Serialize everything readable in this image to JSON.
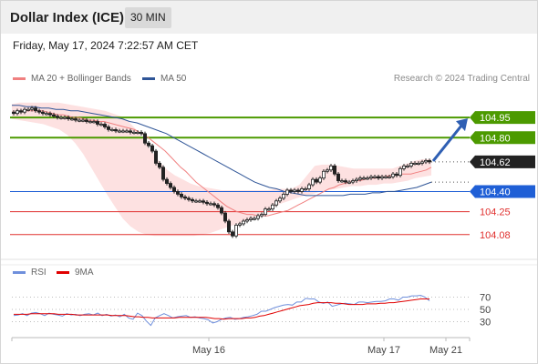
{
  "header": {
    "title": "Dollar Index (ICE)",
    "timeframe": "30 MIN"
  },
  "timestamp": "Friday, May 17, 2024 7:22:57 AM CET",
  "legend": {
    "ma20": {
      "label": "MA 20 + Bollinger Bands",
      "color": "#f08080"
    },
    "ma50": {
      "label": "MA 50",
      "color": "#2f5597"
    },
    "rsi": {
      "label": "RSI",
      "color": "#6f8fdc"
    },
    "ma9": {
      "label": "9MA",
      "color": "#e00000"
    }
  },
  "credit": "Research © 2024 Trading Central",
  "chart_data": [
    {
      "type": "candlestick",
      "ylim": [
        103.95,
        105.14
      ],
      "x_labels": [
        "May 16",
        "May 17",
        "May 21"
      ],
      "levels": [
        {
          "value": 104.95,
          "label": "104.95",
          "kind": "resistance",
          "color": "#4c9a00"
        },
        {
          "value": 104.8,
          "label": "104.80",
          "kind": "resistance",
          "color": "#4c9a00"
        },
        {
          "value": 104.62,
          "label": "104.62",
          "kind": "last-price",
          "color": "#222222"
        },
        {
          "value": 104.4,
          "label": "104.40",
          "kind": "pivot",
          "color": "#1f5fd6"
        },
        {
          "value": 104.25,
          "label": "104.25",
          "kind": "support",
          "color": "#e0312f"
        },
        {
          "value": 104.08,
          "label": "104.08",
          "kind": "support",
          "color": "#e0312f"
        }
      ],
      "forecast_arrow": {
        "from": 104.62,
        "to": 104.95,
        "color": "#2f5fb3"
      },
      "candles": [
        104.98,
        105.0,
        104.99,
        105.01,
        105.01,
        105.02,
        105.0,
        104.99,
        104.98,
        104.98,
        104.97,
        104.96,
        104.95,
        104.95,
        104.95,
        104.94,
        104.94,
        104.93,
        104.93,
        104.93,
        104.92,
        104.92,
        104.92,
        104.9,
        104.9,
        104.88,
        104.86,
        104.86,
        104.85,
        104.85,
        104.85,
        104.85,
        104.84,
        104.84,
        104.84,
        104.83,
        104.76,
        104.74,
        104.7,
        104.61,
        104.58,
        104.49,
        104.46,
        104.43,
        104.4,
        104.38,
        104.36,
        104.35,
        104.34,
        104.33,
        104.33,
        104.33,
        104.32,
        104.31,
        104.31,
        104.3,
        104.28,
        104.24,
        104.18,
        104.1,
        104.07,
        104.15,
        104.16,
        104.18,
        104.19,
        104.2,
        104.2,
        104.22,
        104.23,
        104.27,
        104.27,
        104.3,
        104.33,
        104.35,
        104.38,
        104.41,
        104.4,
        104.41,
        104.4,
        104.42,
        104.42,
        104.45,
        104.49,
        104.47,
        104.5,
        104.55,
        104.56,
        104.59,
        104.53,
        104.48,
        104.48,
        104.47,
        104.47,
        104.48,
        104.49,
        104.5,
        104.5,
        104.5,
        104.51,
        104.51,
        104.5,
        104.51,
        104.51,
        104.51,
        104.53,
        104.52,
        104.57,
        104.59,
        104.59,
        104.61,
        104.61,
        104.61,
        104.62,
        104.63,
        104.62
      ],
      "ma20": [
        104.99,
        104.99,
        105.0,
        105.0,
        105.0,
        105.0,
        105.0,
        104.99,
        104.98,
        104.97,
        104.97,
        104.96,
        104.95,
        104.95,
        104.94,
        104.93,
        104.93,
        104.92,
        104.92,
        104.91,
        104.9,
        104.89,
        104.88,
        104.87,
        104.86,
        104.84,
        104.82,
        104.79,
        104.76,
        104.73,
        104.7,
        104.66,
        104.62,
        104.58,
        104.55,
        104.51,
        104.47,
        104.44,
        104.41,
        104.38,
        104.35,
        104.32,
        104.29,
        104.27,
        104.25,
        104.24,
        104.23,
        104.23,
        104.22,
        104.22,
        104.22,
        104.23,
        104.24,
        104.25,
        104.26,
        104.28,
        104.3,
        104.32,
        104.34,
        104.36,
        104.38,
        104.4,
        104.42,
        104.43,
        104.45,
        104.46,
        104.47,
        104.48,
        104.48,
        104.49,
        104.5,
        104.5,
        104.51,
        104.51,
        104.52,
        104.52,
        104.53,
        104.53,
        104.53,
        104.54,
        104.55,
        104.56,
        104.58
      ],
      "ma50": [
        105.04,
        105.04,
        105.03,
        105.03,
        105.02,
        105.02,
        105.01,
        105.01,
        105.0,
        105.0,
        104.99,
        104.98,
        104.97,
        104.96,
        104.95,
        104.94,
        104.92,
        104.91,
        104.89,
        104.87,
        104.85,
        104.83,
        104.8,
        104.77,
        104.74,
        104.71,
        104.68,
        104.65,
        104.62,
        104.59,
        104.56,
        104.53,
        104.5,
        104.47,
        104.45,
        104.43,
        104.42,
        104.4,
        104.39,
        104.38,
        104.37,
        104.37,
        104.37,
        104.37,
        104.37,
        104.37,
        104.38,
        104.38,
        104.38,
        104.39,
        104.39,
        104.4,
        104.4,
        104.41,
        104.42,
        104.43,
        104.45,
        104.47
      ],
      "bands_upper": [
        105.05,
        105.06,
        105.06,
        105.06,
        105.06,
        105.06,
        105.06,
        105.05,
        105.04,
        105.03,
        105.02,
        105.01,
        105.0,
        104.98,
        104.96,
        104.92,
        104.86,
        104.78,
        104.7,
        104.62,
        104.56,
        104.52,
        104.49,
        104.46,
        104.44,
        104.43,
        104.42,
        104.41,
        104.41,
        104.41,
        104.41,
        104.41,
        104.41,
        104.41,
        104.42,
        104.42,
        104.42,
        104.45,
        104.52,
        104.59,
        104.6,
        104.6,
        104.59,
        104.58,
        104.57,
        104.57,
        104.57,
        104.57,
        104.57,
        104.57,
        104.59,
        104.61,
        104.63,
        104.64,
        104.64
      ],
      "bands_lower": [
        104.94,
        104.93,
        104.92,
        104.91,
        104.9,
        104.88,
        104.86,
        104.82,
        104.76,
        104.68,
        104.58,
        104.48,
        104.38,
        104.29,
        104.2,
        104.14,
        104.1,
        104.08,
        104.07,
        104.07,
        104.07,
        104.07,
        104.07,
        104.07,
        104.08,
        104.09,
        104.11,
        104.13,
        104.15,
        104.17,
        104.19,
        104.22,
        104.25,
        104.28,
        104.31,
        104.33,
        104.35,
        104.37,
        104.38,
        104.4,
        104.41,
        104.42,
        104.43,
        104.44,
        104.44,
        104.45,
        104.45,
        104.46,
        104.46,
        104.47,
        104.48,
        104.5,
        104.51,
        104.52
      ]
    },
    {
      "type": "line",
      "ylim": [
        10,
        90
      ],
      "y_ticks": [
        70,
        50,
        30
      ],
      "series": [
        {
          "name": "RSI",
          "values": [
            40,
            41,
            43,
            40,
            44,
            45,
            43,
            40,
            44,
            42,
            41,
            39,
            43,
            41,
            42,
            40,
            42,
            43,
            41,
            44,
            40,
            42,
            39,
            41,
            38,
            42,
            36,
            34,
            44,
            40,
            31,
            24,
            36,
            40,
            43,
            40,
            36,
            38,
            39,
            40,
            37,
            38,
            36,
            35,
            33,
            28,
            30,
            34,
            36,
            37,
            34,
            35,
            37,
            38,
            40,
            42,
            47,
            47,
            50,
            53,
            55,
            57,
            58,
            57,
            62,
            62,
            68,
            67,
            67,
            62,
            60,
            62,
            55,
            57,
            59,
            60,
            59,
            58,
            62,
            62,
            61,
            62,
            63,
            63,
            64,
            67,
            67,
            65,
            70,
            70,
            72,
            72,
            73,
            70,
            64
          ]
        },
        {
          "name": "9MA",
          "values": [
            42,
            42,
            42,
            42,
            43,
            43,
            43,
            43,
            43,
            43,
            42,
            42,
            42,
            42,
            41,
            41,
            41,
            41,
            41,
            41,
            41,
            41,
            40,
            40,
            40,
            40,
            39,
            38,
            38,
            37,
            37,
            36,
            36,
            36,
            36,
            36,
            36,
            37,
            37,
            37,
            37,
            37,
            37,
            37,
            36,
            35,
            35,
            34,
            35,
            35,
            35,
            35,
            36,
            36,
            37,
            39,
            40,
            42,
            44,
            46,
            48,
            50,
            52,
            54,
            56,
            57,
            58,
            60,
            61,
            61,
            61,
            61,
            60,
            60,
            59,
            58,
            58,
            58,
            58,
            59,
            59,
            59,
            60,
            60,
            61,
            61,
            62,
            63,
            64,
            65,
            66,
            67,
            67,
            67
          ]
        }
      ]
    }
  ]
}
